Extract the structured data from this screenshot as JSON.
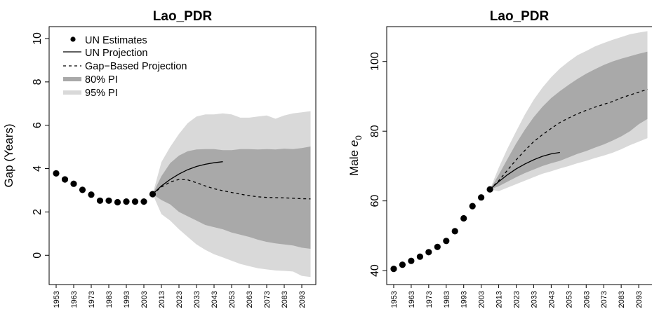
{
  "chart_data": [
    {
      "type": "line",
      "title": "Lao_PDR",
      "ylabel": "Gap (Years)",
      "xlabel": "",
      "xlim": [
        1949,
        2101
      ],
      "ylim": [
        -1.35,
        10.55
      ],
      "xticks": [
        1953,
        1963,
        1973,
        1983,
        1993,
        2003,
        2013,
        2023,
        2033,
        2043,
        2053,
        2063,
        2073,
        2083,
        2093
      ],
      "xtick_labels": [
        "1953",
        "1963",
        "1973",
        "1983",
        "1993",
        "2003",
        "2013",
        "2023",
        "2033",
        "2043",
        "2053",
        "2063",
        "2073",
        "2083",
        "2093"
      ],
      "yticks": [
        0,
        2,
        4,
        6,
        8,
        10
      ],
      "ytick_labels": [
        "0",
        "2",
        "4",
        "6",
        "8",
        "10"
      ],
      "legend": {
        "placement": "top-left",
        "entries": [
          "UN Estimates",
          "UN Projection",
          "Gap−Based Projection",
          "80% PI",
          "95% PI"
        ]
      },
      "colors": {
        "pi95": "#d9d9d9",
        "pi80": "#a9a9a9",
        "line": "#000000"
      },
      "series": [
        {
          "name": "UN Estimates",
          "style": "points",
          "x": [
            1953,
            1958,
            1963,
            1968,
            1973,
            1978,
            1983,
            1988,
            1993,
            1998,
            2003,
            2008
          ],
          "y": [
            3.78,
            3.5,
            3.3,
            3.02,
            2.8,
            2.52,
            2.52,
            2.45,
            2.48,
            2.48,
            2.48,
            2.82
          ]
        },
        {
          "name": "UN Projection",
          "style": "solid",
          "x": [
            2008,
            2013,
            2018,
            2023,
            2028,
            2033,
            2038,
            2043,
            2048
          ],
          "y": [
            2.82,
            3.2,
            3.5,
            3.75,
            3.95,
            4.1,
            4.2,
            4.27,
            4.32
          ]
        },
        {
          "name": "Gap−Based Projection",
          "style": "dashed",
          "x": [
            2008,
            2013,
            2018,
            2023,
            2028,
            2033,
            2038,
            2043,
            2048,
            2053,
            2058,
            2063,
            2068,
            2073,
            2078,
            2083,
            2088,
            2093,
            2098
          ],
          "y": [
            2.82,
            3.15,
            3.38,
            3.5,
            3.48,
            3.35,
            3.2,
            3.07,
            2.98,
            2.9,
            2.82,
            2.75,
            2.7,
            2.67,
            2.66,
            2.65,
            2.63,
            2.61,
            2.6
          ]
        },
        {
          "name": "80% PI",
          "style": "band",
          "x": [
            2008,
            2013,
            2018,
            2023,
            2028,
            2033,
            2038,
            2043,
            2048,
            2053,
            2058,
            2063,
            2068,
            2073,
            2078,
            2083,
            2088,
            2093,
            2098
          ],
          "lower": [
            2.82,
            2.55,
            2.35,
            2.0,
            1.8,
            1.6,
            1.4,
            1.3,
            1.2,
            1.05,
            0.95,
            0.85,
            0.72,
            0.62,
            0.55,
            0.5,
            0.45,
            0.35,
            0.3
          ],
          "upper": [
            2.82,
            3.65,
            4.25,
            4.6,
            4.8,
            4.88,
            4.9,
            4.9,
            4.85,
            4.85,
            4.9,
            4.9,
            4.88,
            4.9,
            4.88,
            4.92,
            4.9,
            4.95,
            5.02
          ]
        },
        {
          "name": "95% PI",
          "style": "band",
          "x": [
            2008,
            2013,
            2018,
            2023,
            2028,
            2033,
            2038,
            2043,
            2048,
            2053,
            2058,
            2063,
            2068,
            2073,
            2078,
            2083,
            2088,
            2093,
            2098
          ],
          "lower": [
            2.82,
            1.9,
            1.6,
            1.2,
            0.85,
            0.5,
            0.25,
            0.05,
            -0.1,
            -0.25,
            -0.4,
            -0.5,
            -0.6,
            -0.65,
            -0.7,
            -0.72,
            -0.75,
            -0.95,
            -1.0
          ],
          "upper": [
            2.82,
            4.3,
            5.0,
            5.6,
            6.1,
            6.4,
            6.5,
            6.5,
            6.55,
            6.5,
            6.35,
            6.35,
            6.4,
            6.45,
            6.3,
            6.45,
            6.55,
            6.6,
            6.65
          ]
        }
      ]
    },
    {
      "type": "line",
      "title": "Lao_PDR",
      "ylabel_main": "Male ",
      "ylabel_sym": "e",
      "ylabel_sub": "0",
      "xlabel": "",
      "xlim": [
        1949,
        2101
      ],
      "ylim": [
        36,
        110
      ],
      "xticks": [
        1953,
        1963,
        1973,
        1983,
        1993,
        2003,
        2013,
        2023,
        2033,
        2043,
        2053,
        2063,
        2073,
        2083,
        2093
      ],
      "xtick_labels": [
        "1953",
        "1963",
        "1973",
        "1983",
        "1993",
        "2003",
        "2013",
        "2023",
        "2033",
        "2043",
        "2053",
        "2063",
        "2073",
        "2083",
        "2093"
      ],
      "yticks": [
        40,
        60,
        80,
        100
      ],
      "ytick_labels": [
        "40",
        "60",
        "80",
        "100"
      ],
      "colors": {
        "pi95": "#d9d9d9",
        "pi80": "#a9a9a9",
        "line": "#000000"
      },
      "series": [
        {
          "name": "UN Estimates",
          "style": "points",
          "x": [
            1953,
            1958,
            1963,
            1968,
            1973,
            1978,
            1983,
            1988,
            1993,
            1998,
            2003,
            2008
          ],
          "y": [
            40.5,
            41.7,
            42.8,
            44.0,
            45.3,
            46.8,
            48.5,
            51.3,
            55.0,
            58.5,
            61.0,
            63.3
          ]
        },
        {
          "name": "UN Projection",
          "style": "solid",
          "x": [
            2008,
            2013,
            2018,
            2023,
            2028,
            2033,
            2038,
            2043,
            2048
          ],
          "y": [
            63.3,
            65.5,
            67.5,
            69.2,
            70.6,
            71.8,
            72.8,
            73.5,
            73.9
          ]
        },
        {
          "name": "Gap−Based Projection",
          "style": "dashed",
          "x": [
            2008,
            2013,
            2018,
            2023,
            2028,
            2033,
            2038,
            2043,
            2048,
            2053,
            2058,
            2063,
            2068,
            2073,
            2078,
            2083,
            2088,
            2093,
            2098
          ],
          "y": [
            63.3,
            65.8,
            68.8,
            71.8,
            74.5,
            77.0,
            79.0,
            80.8,
            82.5,
            83.8,
            85.0,
            86.0,
            86.9,
            87.7,
            88.5,
            89.5,
            90.4,
            91.2,
            92.0
          ]
        },
        {
          "name": "80% PI",
          "style": "band",
          "x": [
            2008,
            2013,
            2018,
            2023,
            2028,
            2033,
            2038,
            2043,
            2048,
            2053,
            2058,
            2063,
            2068,
            2073,
            2078,
            2083,
            2088,
            2093,
            2098
          ],
          "lower": [
            63.3,
            64.2,
            65.5,
            66.8,
            68.0,
            69.0,
            70.0,
            70.8,
            71.5,
            72.5,
            73.5,
            74.3,
            75.3,
            76.2,
            77.3,
            78.5,
            80.0,
            82.0,
            83.5
          ],
          "upper": [
            63.3,
            67.5,
            72.0,
            76.5,
            80.5,
            84.0,
            87.0,
            89.5,
            91.5,
            93.3,
            95.0,
            96.5,
            97.8,
            99.0,
            100.0,
            100.8,
            101.5,
            102.2,
            102.8
          ]
        },
        {
          "name": "95% PI",
          "style": "band",
          "x": [
            2008,
            2013,
            2018,
            2023,
            2028,
            2033,
            2038,
            2043,
            2048,
            2053,
            2058,
            2063,
            2068,
            2073,
            2078,
            2083,
            2088,
            2093,
            2098
          ],
          "lower": [
            63.3,
            62.8,
            63.8,
            64.8,
            65.8,
            66.8,
            67.8,
            68.5,
            69.3,
            70.0,
            70.8,
            71.5,
            72.3,
            73.0,
            73.8,
            74.8,
            76.0,
            77.0,
            78.0
          ],
          "upper": [
            63.3,
            69.5,
            75.0,
            80.0,
            84.8,
            89.0,
            92.5,
            95.5,
            98.0,
            100.0,
            101.8,
            103.0,
            104.3,
            105.3,
            106.2,
            107.0,
            107.8,
            108.3,
            108.7
          ]
        }
      ]
    }
  ]
}
